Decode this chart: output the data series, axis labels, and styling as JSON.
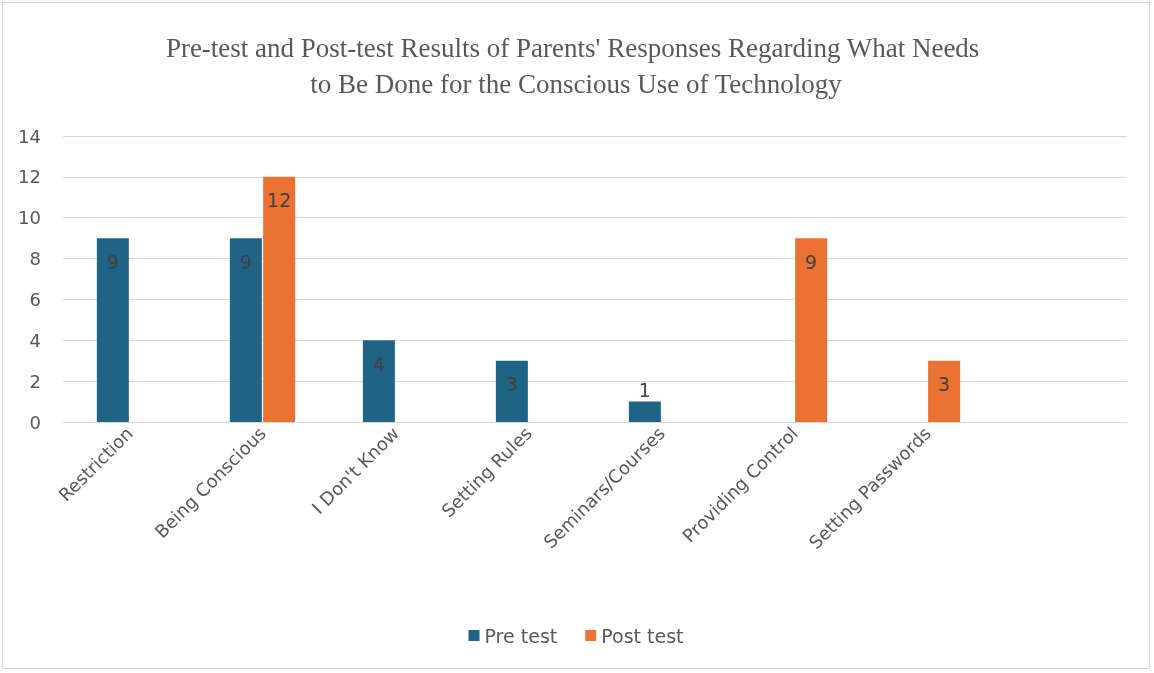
{
  "chart_data": {
    "type": "bar",
    "title": "Pre-test and Post-test Results of Parents' Responses Regarding What Needs to Be Done for the Conscious Use of Technology",
    "categories": [
      "Restriction",
      "Being Conscious",
      "I Don't Know",
      "Setting Rules",
      "Seminars/Courses",
      "Providing Control",
      "Setting Passwords",
      null
    ],
    "series": [
      {
        "name": "Pre test",
        "color": "#1f6385",
        "values": [
          9,
          9,
          4,
          3,
          1,
          null,
          null,
          null
        ]
      },
      {
        "name": "Post test",
        "color": "#ea7232",
        "values": [
          null,
          12,
          null,
          null,
          null,
          9,
          3,
          null
        ]
      }
    ],
    "ylim": [
      0,
      14
    ],
    "yticks": [
      0,
      2,
      4,
      6,
      8,
      10,
      12,
      14
    ],
    "grid": "y",
    "legend": "bottom",
    "data_labels": true
  }
}
